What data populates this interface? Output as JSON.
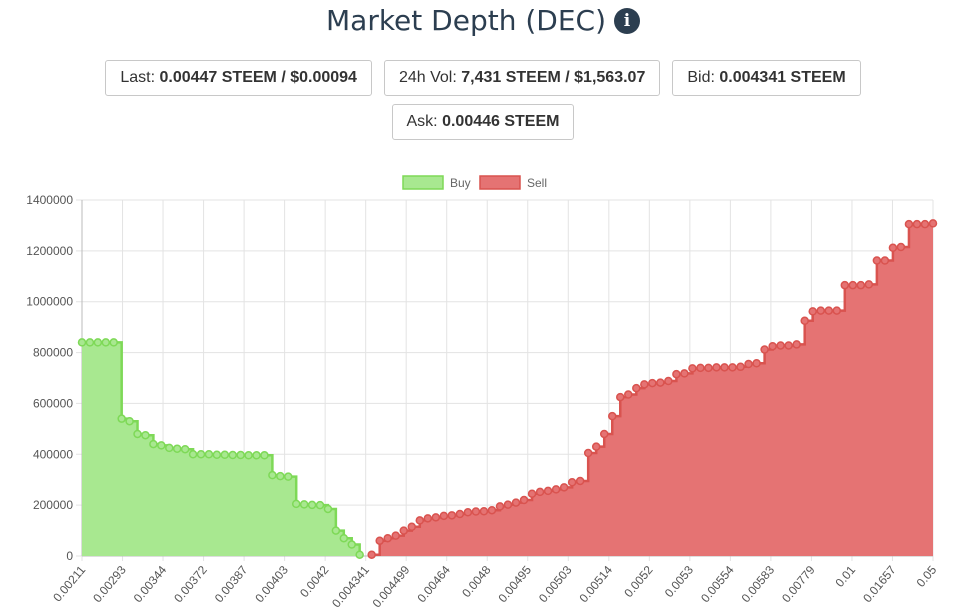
{
  "header": {
    "title": "Market Depth (DEC)",
    "info_icon": "info-circle-icon"
  },
  "stats": {
    "last_label": "Last:",
    "last_value": "0.00447 STEEM / $0.00094",
    "vol_label": "24h Vol:",
    "vol_value": "7,431 STEEM / $1,563.07",
    "bid_label": "Bid:",
    "bid_value": "0.004341 STEEM",
    "ask_label": "Ask:",
    "ask_value": "0.00446 STEEM"
  },
  "chart_data": {
    "type": "area",
    "ylim": [
      0,
      1400000
    ],
    "y_ticks": [
      "0",
      "200000",
      "400000",
      "600000",
      "800000",
      "1000000",
      "1200000",
      "1400000"
    ],
    "x_tick_labels": [
      "0.00211",
      "0.00293",
      "0.00344",
      "0.00372",
      "0.00387",
      "0.00403",
      "0.0042",
      "0.004341",
      "0.004499",
      "0.00464",
      "0.0048",
      "0.00495",
      "0.00503",
      "0.00514",
      "0.0052",
      "0.0053",
      "0.00554",
      "0.00583",
      "0.00779",
      "0.01",
      "0.01657",
      "0.05"
    ],
    "legend_position": "top",
    "grid": true,
    "series": [
      {
        "name": "Buy",
        "color": "#a8e890",
        "stroke": "#7ed957",
        "values": [
          840000,
          840000,
          840000,
          840000,
          840000,
          540000,
          530000,
          480000,
          475000,
          440000,
          435000,
          425000,
          422000,
          420000,
          400000,
          400000,
          400000,
          398000,
          398000,
          397000,
          397000,
          396000,
          396000,
          396000,
          318000,
          314000,
          312000,
          205000,
          203000,
          201000,
          200000,
          185000,
          100000,
          70000,
          45000,
          5000
        ]
      },
      {
        "name": "Sell",
        "color": "#e57373",
        "stroke": "#d9534f",
        "values": [
          5000,
          60000,
          70000,
          80000,
          100000,
          115000,
          140000,
          148000,
          152000,
          158000,
          160000,
          165000,
          172000,
          175000,
          176000,
          180000,
          195000,
          202000,
          210000,
          220000,
          245000,
          252000,
          256000,
          262000,
          270000,
          290000,
          295000,
          405000,
          430000,
          480000,
          550000,
          625000,
          635000,
          660000,
          675000,
          680000,
          682000,
          688000,
          715000,
          718000,
          738000,
          740000,
          740000,
          742000,
          742000,
          742000,
          744000,
          755000,
          758000,
          812000,
          825000,
          828000,
          828000,
          832000,
          925000,
          962000,
          965000,
          965000,
          965000,
          1065000,
          1065000,
          1065000,
          1068000,
          1162000,
          1162000,
          1212000,
          1215000,
          1305000,
          1305000,
          1305000,
          1308000
        ]
      }
    ]
  }
}
